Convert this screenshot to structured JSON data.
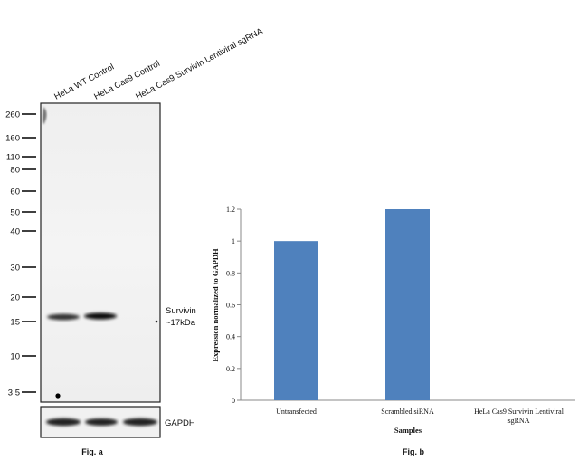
{
  "blot": {
    "lanes": [
      "HeLa WT Control",
      "HeLa Cas9 Control",
      "HeLa Cas9 Survivin Lentiviral sgRNA"
    ],
    "markers": [
      "260",
      "160",
      "110",
      "80",
      "60",
      "50",
      "40",
      "30",
      "20",
      "15",
      "10",
      "3.5"
    ],
    "band_label": "Survivin",
    "band_size": "~17kDa",
    "loading_label": "GAPDH",
    "caption": "Fig. a"
  },
  "chart_data": {
    "type": "bar",
    "categories": [
      "Untransfected",
      "Scrambled siRNA",
      "HeLa Cas9 Survivin Lentiviral sgRNA"
    ],
    "category_labels": [
      [
        "Untransfected"
      ],
      [
        "Scrambled siRNA"
      ],
      [
        "HeLa Cas9 Survivin Lentiviral",
        "sgRNA"
      ]
    ],
    "values": [
      1.0,
      1.2,
      0
    ],
    "ylabel": "Expression normalized to GAPDH",
    "xlabel": "Samples",
    "ylim": [
      0,
      1.2
    ],
    "yticks": [
      "0",
      "0.2",
      "0.4",
      "0.6",
      "0.8",
      "1",
      "1.2"
    ],
    "grid": false,
    "bar_color": "#4f81bd",
    "caption": "Fig. b"
  }
}
